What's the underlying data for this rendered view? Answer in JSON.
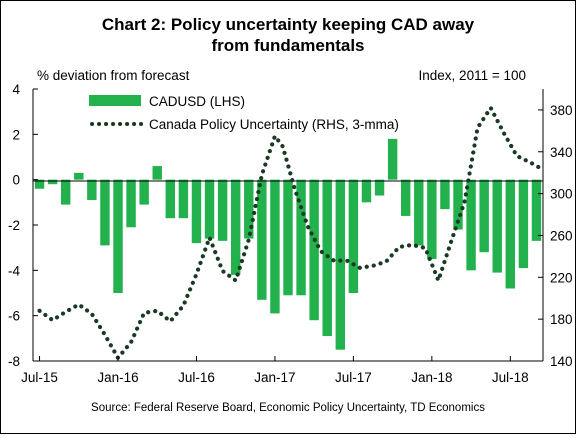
{
  "chart_data": {
    "type": "bar",
    "title_lines": [
      "Chart 2: Policy uncertainty keeping CAD away",
      "from fundamentals"
    ],
    "ylabel_left": "% deviation from forecast",
    "ylabel_right": "Index, 2011 = 100",
    "source": "Source: Federal Reserve Board, Economic Policy Uncertainty, TD Economics",
    "ylim_left": [
      -8,
      4
    ],
    "yticks_left": [
      -8,
      -6,
      -4,
      -2,
      0,
      2,
      4
    ],
    "ylim_right": [
      140,
      400
    ],
    "yticks_right": [
      140,
      180,
      220,
      260,
      300,
      340,
      380
    ],
    "xtick_labels": [
      "Jul-15",
      "Jan-16",
      "Jul-16",
      "Jan-17",
      "Jul-17",
      "Jan-18",
      "Jul-18"
    ],
    "xtick_index": [
      0,
      6,
      12,
      18,
      24,
      30,
      36
    ],
    "legend": [
      "CADUSD (LHS)",
      "Canada Policy Uncertainty (RHS, 3-mma)"
    ],
    "colors": {
      "bars": "#22b14c",
      "line": "#1b3a25"
    },
    "series": [
      {
        "name": "CADUSD (LHS)",
        "type": "bar",
        "axis": "left",
        "values": [
          -0.4,
          -0.2,
          -1.1,
          0.3,
          -0.9,
          -2.9,
          -5.0,
          -2.1,
          -1.1,
          0.6,
          -1.7,
          -1.7,
          -2.8,
          -2.6,
          -2.7,
          -4.2,
          -2.6,
          -5.3,
          -5.9,
          -5.1,
          -5.1,
          -6.2,
          -6.9,
          -7.5,
          -5.0,
          -1.0,
          -0.7,
          1.8,
          -1.6,
          -2.9,
          -3.5,
          -1.3,
          -2.2,
          -4.0,
          -3.2,
          -4.1,
          -4.8,
          -3.9,
          -2.7
        ]
      },
      {
        "name": "Canada Policy Uncertainty (RHS, 3-mma)",
        "type": "line",
        "axis": "right",
        "points": [
          [
            0,
            188
          ],
          [
            1,
            179
          ],
          [
            2,
            187
          ],
          [
            3,
            194
          ],
          [
            4,
            185
          ],
          [
            5,
            165
          ],
          [
            6,
            143
          ],
          [
            7,
            158
          ],
          [
            8,
            186
          ],
          [
            9,
            188
          ],
          [
            10,
            178
          ],
          [
            11,
            193
          ],
          [
            12,
            223
          ],
          [
            13,
            258
          ],
          [
            14,
            226
          ],
          [
            15,
            217
          ],
          [
            16,
            256
          ],
          [
            17,
            318
          ],
          [
            18,
            355
          ],
          [
            18.6,
            345
          ],
          [
            19.5,
            305
          ],
          [
            20.5,
            269
          ],
          [
            21.5,
            245
          ],
          [
            22.5,
            236
          ],
          [
            23.5,
            236
          ],
          [
            24.5,
            229
          ],
          [
            25.5,
            231
          ],
          [
            26.5,
            235
          ],
          [
            27.5,
            249
          ],
          [
            28.5,
            251
          ],
          [
            29.5,
            248
          ],
          [
            30.5,
            217
          ],
          [
            31.5,
            255
          ],
          [
            32.5,
            292
          ],
          [
            33.5,
            363
          ],
          [
            34.5,
            382
          ],
          [
            35.5,
            358
          ],
          [
            36.5,
            336
          ],
          [
            37.5,
            330
          ],
          [
            38.5,
            323
          ]
        ]
      }
    ]
  }
}
